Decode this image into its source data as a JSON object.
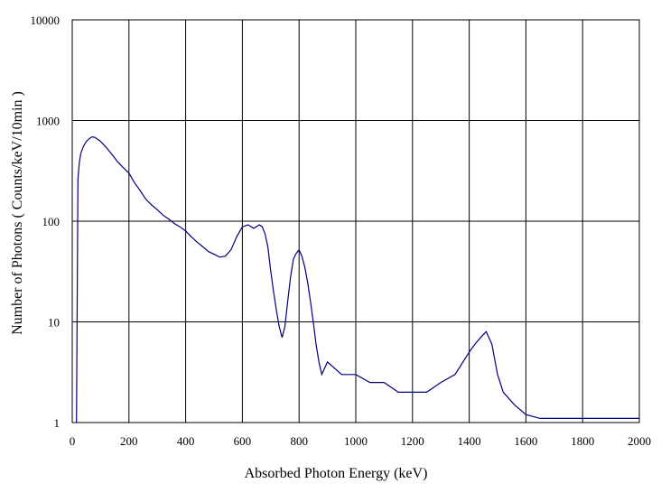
{
  "chart_data": {
    "type": "line",
    "title": "",
    "xlabel": "Absorbed Photon Energy (keV)",
    "ylabel": "Number of Photons ( Counts/keV/10min )",
    "x_ticks": [
      "0",
      "200",
      "400",
      "600",
      "800",
      "1000",
      "1200",
      "1400",
      "1600",
      "1800",
      "2000"
    ],
    "y_ticks": [
      "1",
      "10",
      "100",
      "1000",
      "10000"
    ],
    "xlim": [
      0,
      2000
    ],
    "ylim": [
      1,
      10000
    ],
    "y_scale": "log",
    "grid": true,
    "legend": "none",
    "line_color": "#000080",
    "series": [
      {
        "x": [
          15,
          20,
          25,
          30,
          40,
          50,
          60,
          70,
          80,
          90,
          100,
          120,
          140,
          160,
          180,
          200,
          220,
          240,
          260,
          280,
          300,
          320,
          340,
          360,
          380,
          400,
          420,
          440,
          460,
          480,
          500,
          520,
          540,
          560,
          580,
          600,
          620,
          640,
          660,
          670,
          680,
          690,
          700,
          710,
          720,
          730,
          740,
          750,
          760,
          770,
          780,
          790,
          800,
          810,
          820,
          830,
          840,
          850,
          860,
          870,
          880,
          900,
          950,
          1000,
          1050,
          1100,
          1150,
          1200,
          1250,
          1300,
          1350,
          1400,
          1420,
          1440,
          1460,
          1480,
          1500,
          1520,
          1560,
          1600,
          1650,
          1700,
          1750,
          1800,
          1850,
          1900,
          1950,
          2000
        ],
        "values": [
          1,
          260,
          380,
          470,
          560,
          620,
          660,
          690,
          680,
          650,
          620,
          540,
          460,
          390,
          340,
          300,
          240,
          200,
          165,
          145,
          130,
          115,
          105,
          95,
          88,
          80,
          70,
          62,
          56,
          50,
          47,
          44,
          45,
          52,
          70,
          88,
          92,
          85,
          92,
          88,
          75,
          55,
          32,
          20,
          13,
          9,
          7,
          9,
          16,
          28,
          42,
          48,
          52,
          45,
          35,
          25,
          16,
          10,
          6,
          4,
          3,
          4,
          3,
          3,
          2.5,
          2.5,
          2,
          2,
          2,
          2.5,
          3,
          5,
          6,
          7,
          8,
          6,
          3,
          2,
          1.5,
          1.2,
          1.1,
          1.1,
          1.1,
          1.1,
          1.1,
          1.1,
          1.1,
          1.1
        ]
      }
    ]
  }
}
